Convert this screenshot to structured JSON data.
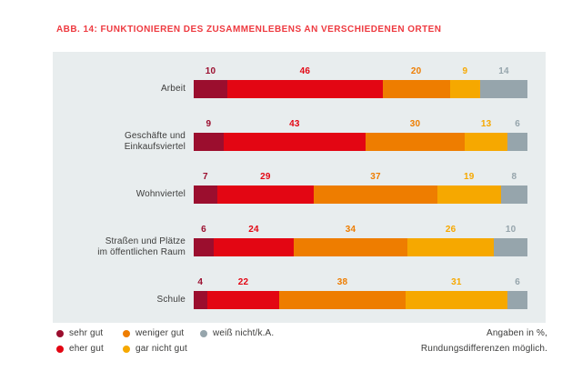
{
  "title": "ABB. 14: FUNKTIONIEREN DES ZUSAMMENLEBENS AN VERSCHIEDENEN ORTEN",
  "note": {
    "line1": "Angaben in %,",
    "line2": "Rundungsdifferenzen möglich."
  },
  "colors": {
    "title_red": "#ee3a40",
    "panel_background": "#e8edee",
    "text": "#3c3c3b",
    "sehr_gut": "#9b0e2e",
    "eher_gut": "#e30613",
    "weniger_gut": "#ee7d00",
    "gar_nicht_gut": "#f6a800",
    "weiss_nicht": "#96a5ac"
  },
  "chart_data": {
    "type": "bar",
    "orientation": "horizontal",
    "stacked": true,
    "normalized_to_full_width": true,
    "units": "%",
    "title": "ABB. 14: FUNKTIONIEREN DES ZUSAMMENLEBENS AN VERSCHIEDENEN ORTEN",
    "legend_position": "bottom",
    "categories": [
      {
        "label": "Arbeit",
        "lines": [
          "Arbeit"
        ]
      },
      {
        "label": "Geschäfte und Einkaufsviertel",
        "lines": [
          "Geschäfte und",
          "Einkaufsviertel"
        ]
      },
      {
        "label": "Wohnviertel",
        "lines": [
          "Wohnviertel"
        ]
      },
      {
        "label": "Straßen und Plätze im öffentlichen Raum",
        "lines": [
          "Straßen und Plätze",
          "im öffentlichen Raum"
        ]
      },
      {
        "label": "Schule",
        "lines": [
          "Schule"
        ]
      }
    ],
    "series": [
      {
        "name": "sehr gut",
        "color": "#9b0e2e",
        "values": [
          10,
          9,
          7,
          6,
          4
        ]
      },
      {
        "name": "eher gut",
        "color": "#e30613",
        "values": [
          46,
          43,
          29,
          24,
          22
        ]
      },
      {
        "name": "weniger gut",
        "color": "#ee7d00",
        "values": [
          20,
          30,
          37,
          34,
          38
        ]
      },
      {
        "name": "gar nicht gut",
        "color": "#f6a800",
        "values": [
          9,
          13,
          19,
          26,
          31
        ]
      },
      {
        "name": "weiß nicht/k.A.",
        "color": "#96a5ac",
        "values": [
          14,
          6,
          8,
          10,
          6
        ]
      }
    ]
  }
}
